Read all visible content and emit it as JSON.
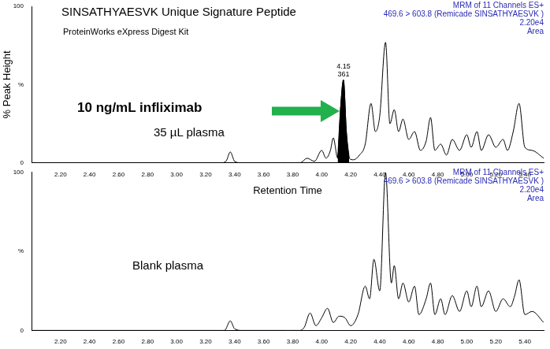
{
  "chart_data": [
    {
      "type": "line",
      "title": "SINSATHYAESVK  Unique Signature Peptide",
      "subtitle": "ProteinWorks eXpress Digest Kit",
      "header": [
        "MRM of 11 Channels ES+",
        "469.6 > 603.8 (Remicade SINSATHYAESVK )",
        "2.20e4",
        "Area"
      ],
      "annotations": [
        "10 ng/mL infliximab",
        "35 µL plasma"
      ],
      "x_label": "Retention Time",
      "y_label": "% Peak Height",
      "x": [
        2.0,
        3.3,
        3.34,
        3.37,
        3.4,
        3.45,
        3.85,
        3.9,
        3.95,
        4.0,
        4.03,
        4.06,
        4.08,
        4.11,
        4.13,
        4.15,
        4.17,
        4.19,
        4.22,
        4.26,
        4.3,
        4.34,
        4.37,
        4.4,
        4.44,
        4.47,
        4.5,
        4.53,
        4.56,
        4.6,
        4.64,
        4.68,
        4.72,
        4.75,
        4.78,
        4.82,
        4.86,
        4.9,
        4.95,
        5.0,
        5.03,
        5.07,
        5.1,
        5.15,
        5.2,
        5.25,
        5.28,
        5.32,
        5.36,
        5.4,
        5.45,
        5.53
      ],
      "series": [
        {
          "color": "#000000",
          "values": [
            0,
            0,
            1,
            7,
            1,
            0,
            0,
            3,
            1,
            8,
            3,
            8,
            16,
            3,
            35,
            53,
            20,
            3,
            2,
            5,
            12,
            38,
            20,
            30,
            77,
            25,
            34,
            20,
            28,
            15,
            20,
            8,
            14,
            29,
            8,
            12,
            5,
            15,
            8,
            18,
            10,
            20,
            8,
            18,
            10,
            15,
            8,
            20,
            38,
            10,
            8,
            3
          ]
        }
      ],
      "peak": {
        "retention_time": 4.15,
        "area": 361,
        "start": 4.11,
        "end": 4.19,
        "color": "#000000"
      },
      "xlim": [
        2.0,
        5.53
      ],
      "xticks": [
        {
          "value": 2.2,
          "label": "2.20"
        },
        {
          "value": 2.4,
          "label": "2.40"
        },
        {
          "value": 2.6,
          "label": "2.60"
        },
        {
          "value": 2.8,
          "label": "2.80"
        },
        {
          "value": 3.0,
          "label": "3.00"
        },
        {
          "value": 3.2,
          "label": "3.20"
        },
        {
          "value": 3.4,
          "label": "3.40"
        },
        {
          "value": 3.6,
          "label": "3.60"
        },
        {
          "value": 3.8,
          "label": "3.80"
        },
        {
          "value": 4.0,
          "label": "4.00"
        },
        {
          "value": 4.2,
          "label": "4.20"
        },
        {
          "value": 4.4,
          "label": "4.40"
        },
        {
          "value": 4.6,
          "label": "4.60"
        },
        {
          "value": 4.8,
          "label": "4.80"
        },
        {
          "value": 5.0,
          "label": "5.00"
        },
        {
          "value": 5.2,
          "label": "5.20"
        },
        {
          "value": 5.4,
          "label": "5.40"
        }
      ],
      "ylim": [
        0,
        100
      ],
      "yticks": [
        0,
        {
          "value": 50,
          "label": "%"
        },
        100
      ],
      "grid": false
    },
    {
      "type": "line",
      "header": [
        "MRM of 11 Channels ES+",
        "469.6 > 603.8 (Remicade SINSATHYAESVK )",
        "2.20e4",
        "Area"
      ],
      "annotations": [
        "Blank plasma"
      ],
      "x": [
        2.0,
        3.33,
        3.37,
        3.4,
        3.45,
        3.85,
        3.88,
        3.92,
        3.96,
        4.0,
        4.04,
        4.08,
        4.12,
        4.16,
        4.2,
        4.25,
        4.3,
        4.33,
        4.36,
        4.4,
        4.44,
        4.48,
        4.5,
        4.53,
        4.56,
        4.6,
        4.64,
        4.67,
        4.72,
        4.75,
        4.78,
        4.82,
        4.85,
        4.9,
        4.95,
        5.0,
        5.03,
        5.07,
        5.1,
        5.15,
        5.2,
        5.25,
        5.3,
        5.33,
        5.36,
        5.4,
        5.45,
        5.53
      ],
      "series": [
        {
          "color": "#000000",
          "values": [
            0,
            0,
            6,
            1,
            0,
            0,
            2,
            11,
            3,
            8,
            14,
            5,
            9,
            8,
            3,
            10,
            28,
            20,
            45,
            25,
            100,
            30,
            41,
            20,
            30,
            18,
            28,
            10,
            20,
            30,
            10,
            20,
            10,
            22,
            12,
            25,
            15,
            28,
            15,
            25,
            12,
            20,
            15,
            22,
            32,
            10,
            12,
            5
          ]
        }
      ],
      "xlim": [
        2.0,
        5.53
      ],
      "xticks": [
        {
          "value": 2.2,
          "label": "2.20"
        },
        {
          "value": 2.4,
          "label": "2.40"
        },
        {
          "value": 2.6,
          "label": "2.60"
        },
        {
          "value": 2.8,
          "label": "2.80"
        },
        {
          "value": 3.0,
          "label": "3.00"
        },
        {
          "value": 3.2,
          "label": "3.20"
        },
        {
          "value": 3.4,
          "label": "3.40"
        },
        {
          "value": 3.6,
          "label": "3.60"
        },
        {
          "value": 3.8,
          "label": "3.80"
        },
        {
          "value": 4.0,
          "label": "4.00"
        },
        {
          "value": 4.2,
          "label": "4.20"
        },
        {
          "value": 4.4,
          "label": "4.40"
        },
        {
          "value": 4.6,
          "label": "4.60"
        },
        {
          "value": 4.8,
          "label": "4.80"
        },
        {
          "value": 5.0,
          "label": "5.00"
        },
        {
          "value": 5.2,
          "label": "5.20"
        },
        {
          "value": 5.4,
          "label": "5.40"
        }
      ],
      "ylim": [
        0,
        100
      ],
      "yticks": [
        0,
        {
          "value": 50,
          "label": "%"
        },
        100
      ],
      "grid": false
    }
  ]
}
